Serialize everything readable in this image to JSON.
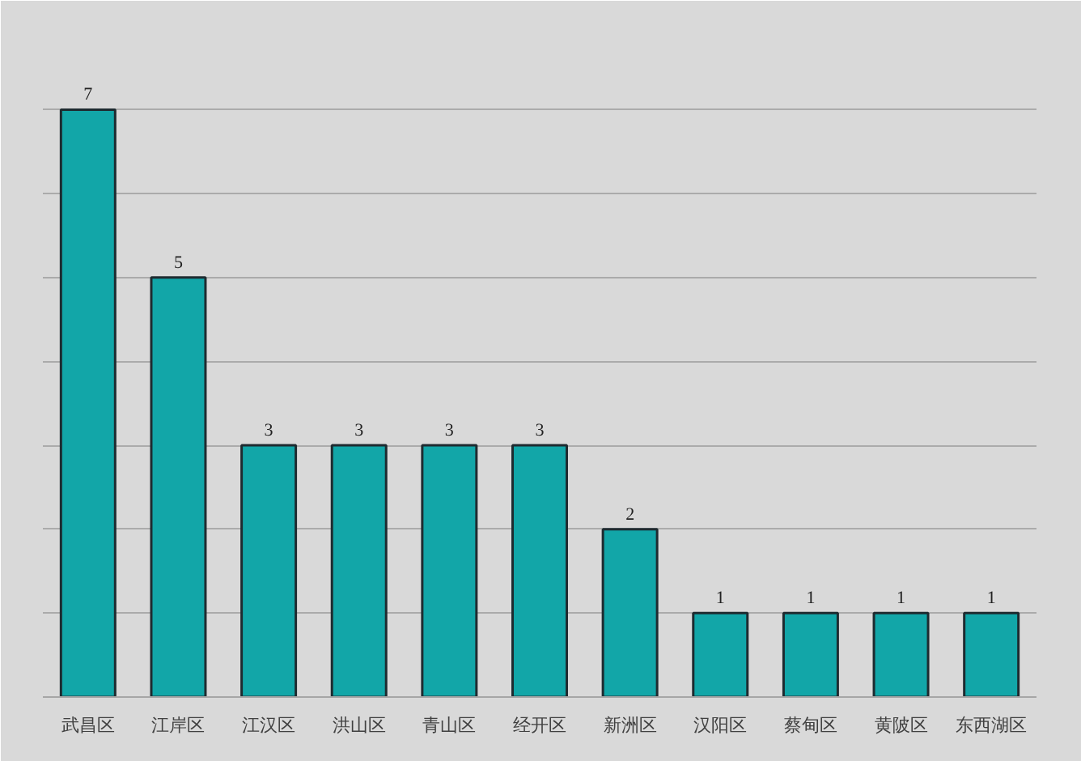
{
  "chart_data": {
    "type": "bar",
    "categories": [
      "武昌区",
      "江岸区",
      "江汉区",
      "洪山区",
      "青山区",
      "经开区",
      "新洲区",
      "汉阳区",
      "蔡甸区",
      "黄陂区",
      "东西湖区"
    ],
    "values": [
      7,
      5,
      3,
      3,
      3,
      3,
      2,
      1,
      1,
      1,
      1
    ],
    "color": "#12a6a8",
    "grid": "y",
    "data_labels": true,
    "tick_labels": "x"
  }
}
